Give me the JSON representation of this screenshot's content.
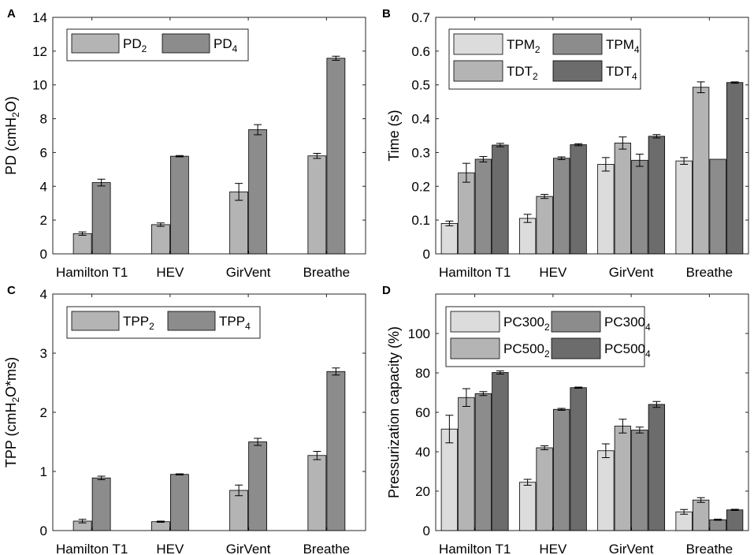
{
  "chart_data": [
    {
      "panel_label": "A",
      "type": "bar",
      "ylabel": "PD (cmH",
      "ylabel_sub": "2",
      "ylabel_tail": "O)",
      "ylim": [
        0,
        14
      ],
      "yticks": [
        0,
        2,
        4,
        6,
        8,
        10,
        12,
        14
      ],
      "categories": [
        "Hamilton T1",
        "HEV",
        "GirVent",
        "Breathe"
      ],
      "legend_cols": 2,
      "series": [
        {
          "name": "PD",
          "sub": "2",
          "color": "#b4b4b4",
          "values": [
            1.2,
            1.73,
            3.67,
            5.8
          ],
          "errors": [
            0.1,
            0.1,
            0.5,
            0.15
          ]
        },
        {
          "name": "PD",
          "sub": "4",
          "color": "#8c8c8c",
          "values": [
            4.22,
            5.78,
            7.35,
            11.58
          ],
          "errors": [
            0.2,
            0.04,
            0.3,
            0.12
          ]
        }
      ]
    },
    {
      "panel_label": "B",
      "type": "bar",
      "ylabel": "Time (s)",
      "ylabel_sub": "",
      "ylabel_tail": "",
      "ylim": [
        0,
        0.7
      ],
      "yticks": [
        0,
        0.1,
        0.2,
        0.3,
        0.4,
        0.5,
        0.6,
        0.7
      ],
      "categories": [
        "Hamilton T1",
        "HEV",
        "GirVent",
        "Breathe"
      ],
      "legend_cols": 2,
      "series": [
        {
          "name": "TPM",
          "sub": "2",
          "color": "#dcdcdc",
          "values": [
            0.09,
            0.105,
            0.265,
            0.275
          ],
          "errors": [
            0.007,
            0.012,
            0.02,
            0.01
          ]
        },
        {
          "name": "TDT",
          "sub": "2",
          "color": "#b4b4b4",
          "values": [
            0.24,
            0.17,
            0.328,
            0.493
          ],
          "errors": [
            0.028,
            0.006,
            0.018,
            0.016
          ]
        },
        {
          "name": "TPM",
          "sub": "4",
          "color": "#8c8c8c",
          "values": [
            0.28,
            0.283,
            0.277,
            0.28
          ],
          "errors": [
            0.008,
            0.004,
            0.018,
            0
          ]
        },
        {
          "name": "TDT",
          "sub": "4",
          "color": "#6c6c6c",
          "values": [
            0.322,
            0.323,
            0.348,
            0.507
          ],
          "errors": [
            0.005,
            0.003,
            0.005,
            0.002
          ]
        }
      ]
    },
    {
      "panel_label": "C",
      "type": "bar",
      "ylabel": "TPP (cmH",
      "ylabel_sub": "2",
      "ylabel_tail": "O*ms)",
      "ylim": [
        0,
        4
      ],
      "yticks": [
        0,
        1,
        2,
        3,
        4
      ],
      "categories": [
        "Hamilton T1",
        "HEV",
        "GirVent",
        "Breathe"
      ],
      "legend_cols": 2,
      "series": [
        {
          "name": "TPP",
          "sub": "2",
          "color": "#b4b4b4",
          "values": [
            0.16,
            0.15,
            0.68,
            1.27
          ],
          "errors": [
            0.03,
            0.01,
            0.09,
            0.07
          ]
        },
        {
          "name": "TPP",
          "sub": "4",
          "color": "#8c8c8c",
          "values": [
            0.89,
            0.95,
            1.5,
            2.69
          ],
          "errors": [
            0.03,
            0.01,
            0.06,
            0.06
          ]
        }
      ]
    },
    {
      "panel_label": "D",
      "type": "bar",
      "ylabel": "Pressurization capacity (%)",
      "ylabel_sub": "",
      "ylabel_tail": "",
      "ylim": [
        0,
        120
      ],
      "yticks": [
        0,
        20,
        40,
        60,
        80,
        100
      ],
      "categories": [
        "Hamilton T1",
        "HEV",
        "GirVent",
        "Breathe"
      ],
      "legend_cols": 2,
      "series": [
        {
          "name": "PC300",
          "sub": "2",
          "color": "#dcdcdc",
          "values": [
            51.5,
            24.5,
            40.5,
            9.5
          ],
          "errors": [
            7,
            1.5,
            3.5,
            1.2
          ]
        },
        {
          "name": "PC500",
          "sub": "2",
          "color": "#b4b4b4",
          "values": [
            67.5,
            42,
            53,
            15.5
          ],
          "errors": [
            4.5,
            1,
            3.5,
            1.2
          ]
        },
        {
          "name": "PC300",
          "sub": "4",
          "color": "#8c8c8c",
          "values": [
            69.5,
            61.5,
            51,
            5.5
          ],
          "errors": [
            1,
            0.5,
            1.5,
            0.3
          ]
        },
        {
          "name": "PC500",
          "sub": "4",
          "color": "#6c6c6c",
          "values": [
            80.2,
            72.5,
            64,
            10.5
          ],
          "errors": [
            0.8,
            0.3,
            1.5,
            0.3
          ]
        }
      ]
    }
  ]
}
